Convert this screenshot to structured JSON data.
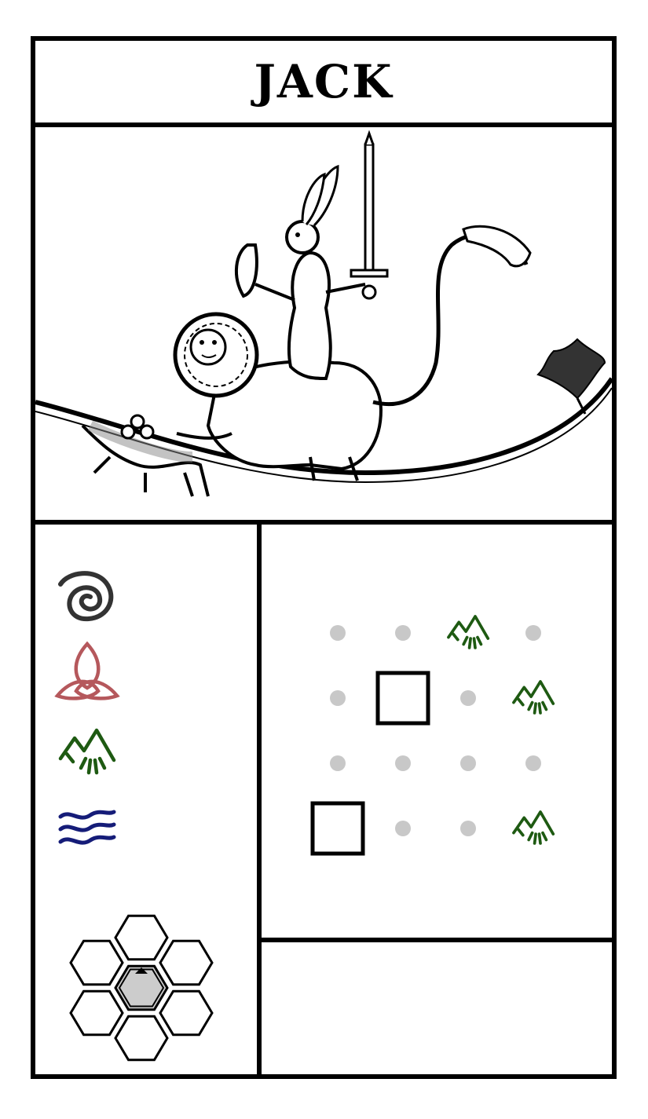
{
  "card": {
    "title": "JACK",
    "illustration": "hare-knight-riding-lion",
    "affinities": [
      {
        "icon": "spiral-icon",
        "color": "#333333"
      },
      {
        "icon": "triquetra-icon",
        "color": "#b5585c"
      },
      {
        "icon": "mountain-sprout-icon",
        "color": "#1e5a12"
      },
      {
        "icon": "water-waves-icon",
        "color": "#151c78"
      }
    ],
    "pattern_grid": {
      "rows": 4,
      "cols": 4,
      "cells": [
        [
          "dot",
          "dot",
          "sprout",
          "dot"
        ],
        [
          "dot",
          "square",
          "dot",
          "sprout"
        ],
        [
          "dot",
          "dot",
          "dot",
          "dot"
        ],
        [
          "square",
          "dot",
          "dot",
          "sprout"
        ]
      ]
    },
    "movement": {
      "hexes": [
        "top",
        "upper-left",
        "upper-right",
        "center",
        "lower-left",
        "lower-right",
        "bottom"
      ],
      "highlight": "center",
      "facing": "up"
    }
  },
  "colors": {
    "ink": "#000000",
    "dot": "#c8c8c8",
    "sprout": "#1e5a12",
    "hex_fill": "#cccccc"
  }
}
